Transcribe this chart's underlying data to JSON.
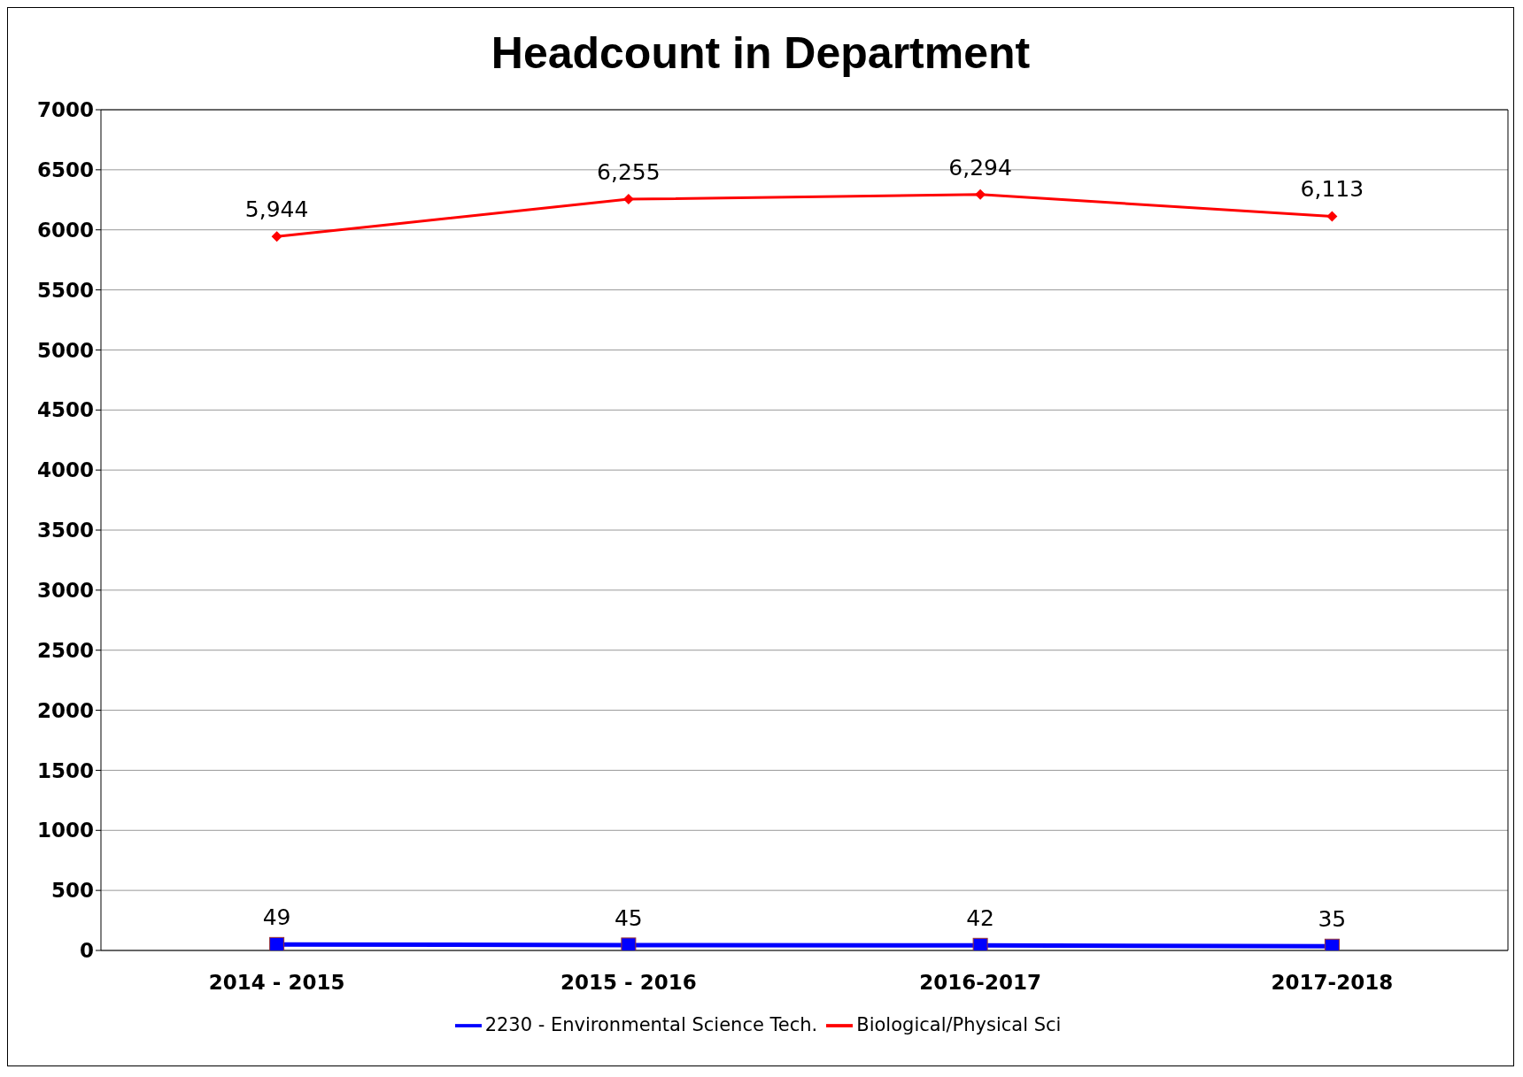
{
  "chart_data": {
    "type": "line",
    "title": "Headcount in Department",
    "categories": [
      "2014 - 2015",
      "2015 - 2016",
      "2016-2017",
      "2017-2018"
    ],
    "series": [
      {
        "name": "2230 - Environmental Science Tech.",
        "color": "#0000ff",
        "values": [
          49,
          45,
          42,
          35
        ],
        "value_labels": [
          "49",
          "45",
          "42",
          "35"
        ],
        "marker": "square"
      },
      {
        "name": "Biological/Physical Sci",
        "color": "#ff0000",
        "values": [
          5944,
          6255,
          6294,
          6113
        ],
        "value_labels": [
          "5,944",
          "6,255",
          "6,294",
          "6,113"
        ],
        "marker": "diamond"
      }
    ],
    "ylim": [
      0,
      7000
    ],
    "yticks": [
      0,
      500,
      1000,
      1500,
      2000,
      2500,
      3000,
      3500,
      4000,
      4500,
      5000,
      5500,
      6000,
      6500,
      7000
    ],
    "grid": "y",
    "legend": "bottom",
    "line_style": "solid"
  }
}
